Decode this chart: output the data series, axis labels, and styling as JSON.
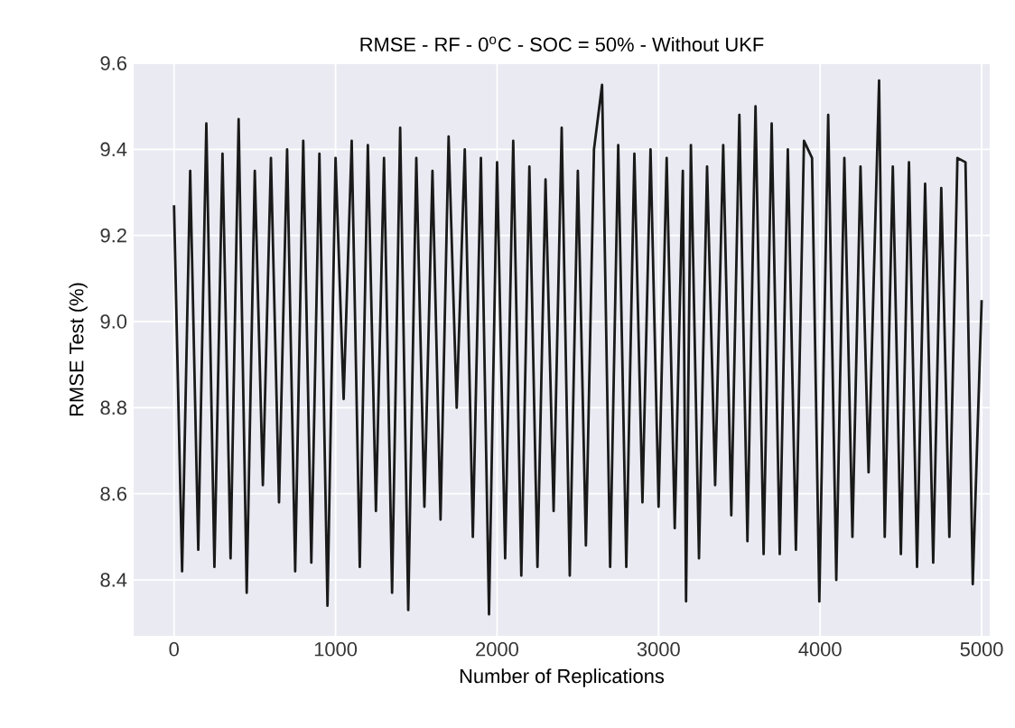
{
  "chart_data": {
    "type": "line",
    "title": "RMSE - RF - 0$^{o}$C - SOC = 50% - Without UKF",
    "xlabel": "Number of Replications",
    "ylabel": "RMSE Test (%)",
    "xlim": [
      -250,
      5050
    ],
    "ylim": [
      8.27,
      9.6
    ],
    "xticks": [
      0,
      1000,
      2000,
      3000,
      4000,
      5000
    ],
    "yticks": [
      8.4,
      8.6,
      8.8,
      {
        "value": 9.0,
        "label": "9.0"
      },
      9.2,
      9.4,
      9.6
    ],
    "grid": true,
    "marker": "none",
    "line_style": "solid",
    "series": [
      {
        "color": "#1a1a1a",
        "x": [
          0,
          50,
          100,
          150,
          200,
          250,
          300,
          350,
          400,
          450,
          500,
          550,
          600,
          650,
          700,
          750,
          800,
          850,
          900,
          950,
          1000,
          1050,
          1100,
          1150,
          1200,
          1250,
          1300,
          1350,
          1400,
          1450,
          1500,
          1550,
          1600,
          1650,
          1700,
          1750,
          1800,
          1850,
          1900,
          1950,
          2000,
          2050,
          2100,
          2150,
          2200,
          2250,
          2300,
          2350,
          2400,
          2450,
          2500,
          2550,
          2600,
          2650,
          2700,
          2750,
          2800,
          2850,
          2900,
          2950,
          3000,
          3050,
          3100,
          3150,
          3170,
          3200,
          3250,
          3300,
          3350,
          3400,
          3450,
          3500,
          3550,
          3600,
          3650,
          3700,
          3750,
          3800,
          3850,
          3900,
          3950,
          3995,
          4050,
          4100,
          4150,
          4200,
          4250,
          4300,
          4365,
          4400,
          4450,
          4500,
          4550,
          4600,
          4650,
          4700,
          4750,
          4800,
          4850,
          4900,
          4945,
          5000
        ],
        "values": [
          9.27,
          8.42,
          9.35,
          8.47,
          9.46,
          8.43,
          9.39,
          8.45,
          9.47,
          8.37,
          9.35,
          8.62,
          9.38,
          8.58,
          9.4,
          8.42,
          9.42,
          8.44,
          9.39,
          8.34,
          9.38,
          8.82,
          9.42,
          8.43,
          9.41,
          8.56,
          9.38,
          8.37,
          9.45,
          8.33,
          9.38,
          8.57,
          9.35,
          8.54,
          9.43,
          8.8,
          9.4,
          8.5,
          9.38,
          8.32,
          9.37,
          8.45,
          9.42,
          8.41,
          9.36,
          8.43,
          9.33,
          8.56,
          9.45,
          8.41,
          9.35,
          8.48,
          9.4,
          9.55,
          8.43,
          9.41,
          8.43,
          9.39,
          8.58,
          9.4,
          8.57,
          9.38,
          8.52,
          9.35,
          8.35,
          9.41,
          8.45,
          9.36,
          8.62,
          9.41,
          8.55,
          9.48,
          8.49,
          9.5,
          8.46,
          9.46,
          8.46,
          9.4,
          8.47,
          9.42,
          9.38,
          8.35,
          9.48,
          8.4,
          9.38,
          8.5,
          9.36,
          8.65,
          9.56,
          8.5,
          9.36,
          8.46,
          9.37,
          8.43,
          9.32,
          8.44,
          9.31,
          8.5,
          9.38,
          9.37,
          8.39,
          9.05
        ]
      }
    ]
  }
}
